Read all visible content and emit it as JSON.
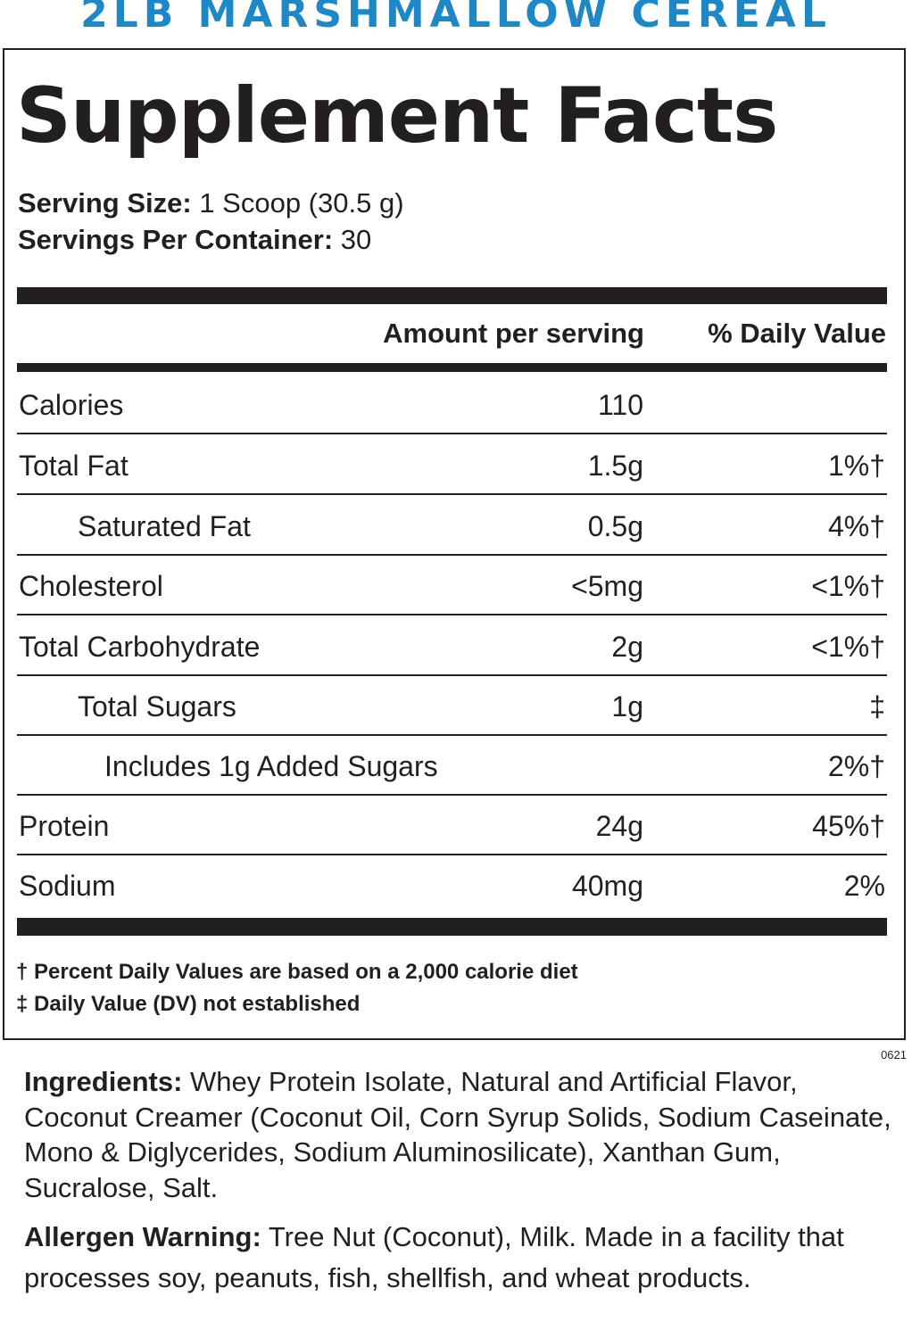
{
  "flavor_title": "2LB MARSHMALLOW CEREAL",
  "facts_title": "Supplement Facts",
  "serving_size": {
    "label": "Serving Size:",
    "value": "1 Scoop (30.5 g)"
  },
  "servings_per_container": {
    "label": "Servings Per Container:",
    "value": "30"
  },
  "table": {
    "headers": {
      "amount": "Amount per serving",
      "daily_value": "% Daily Value"
    },
    "rows": [
      {
        "name": "Calories",
        "amount": "110",
        "dv": ""
      },
      {
        "name": "Total Fat",
        "amount": "1.5g",
        "dv": "1%†"
      },
      {
        "name": "Saturated Fat",
        "amount": "0.5g",
        "dv": "4%†"
      },
      {
        "name": "Cholesterol",
        "amount": "<5mg",
        "dv": "<1%†"
      },
      {
        "name": "Total Carbohydrate",
        "amount": "2g",
        "dv": "<1%†"
      },
      {
        "name": "Total Sugars",
        "amount": "1g",
        "dv": "‡"
      },
      {
        "name": "Includes 1g Added Sugars",
        "amount": "",
        "dv": "2%†"
      },
      {
        "name": "Protein",
        "amount": "24g",
        "dv": "45%†"
      },
      {
        "name": "Sodium",
        "amount": "40mg",
        "dv": "2%"
      }
    ]
  },
  "footnotes": [
    "† Percent Daily Values are based on a 2,000 calorie diet",
    "‡ Daily Value (DV) not established"
  ],
  "code": "0621",
  "ingredients": {
    "label": "Ingredients:",
    "text": " Whey Protein Isolate, Natural and Artificial Flavor, Coconut Creamer (Coconut Oil, Corn Syrup Solids, Sodium Caseinate, Mono & Diglycerides, Sodium Aluminosilicate), Xanthan Gum, Sucralose, Salt."
  },
  "allergen": {
    "label": "Allergen Warning:",
    "text": " Tree Nut (Coconut), Milk. Made in a facility that processes soy, peanuts, fish, shellfish, and wheat products."
  },
  "colors": {
    "flavor_title": "#1e87c6",
    "text": "#231f20"
  }
}
